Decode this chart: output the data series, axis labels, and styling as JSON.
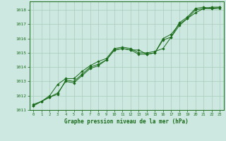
{
  "title": "Graphe pression niveau de la mer (hPa)",
  "bg_color": "#cce8e0",
  "grid_color": "#aaccbb",
  "line_color": "#1a6b1a",
  "marker_color": "#1a6b1a",
  "xlim": [
    -0.5,
    23.5
  ],
  "ylim": [
    1011,
    1018.6
  ],
  "yticks": [
    1011,
    1012,
    1013,
    1014,
    1015,
    1016,
    1017,
    1018
  ],
  "xticks": [
    0,
    1,
    2,
    3,
    4,
    5,
    6,
    7,
    8,
    9,
    10,
    11,
    12,
    13,
    14,
    15,
    16,
    17,
    18,
    19,
    20,
    21,
    22,
    23
  ],
  "series": [
    [
      1011.3,
      1011.6,
      1011.9,
      1012.1,
      1013.1,
      1013.0,
      1013.5,
      1014.0,
      1014.2,
      1014.5,
      1015.2,
      1015.3,
      1015.2,
      1015.2,
      1014.9,
      1015.0,
      1015.9,
      1016.1,
      1017.1,
      1017.5,
      1018.1,
      1018.2,
      1018.1,
      1018.2
    ],
    [
      1011.3,
      1011.6,
      1011.9,
      1012.2,
      1013.0,
      1012.9,
      1013.4,
      1013.9,
      1014.1,
      1014.5,
      1015.2,
      1015.3,
      1015.2,
      1014.9,
      1014.9,
      1015.0,
      1016.0,
      1016.3,
      1017.0,
      1017.4,
      1018.0,
      1018.1,
      1018.1,
      1018.1
    ],
    [
      1011.4,
      1011.6,
      1012.0,
      1012.8,
      1013.2,
      1013.2,
      1013.7,
      1014.1,
      1014.4,
      1014.6,
      1015.3,
      1015.4,
      1015.3,
      1015.0,
      1015.0,
      1015.1,
      1015.3,
      1016.1,
      1016.9,
      1017.4,
      1017.8,
      1018.1,
      1018.2,
      1018.2
    ]
  ]
}
